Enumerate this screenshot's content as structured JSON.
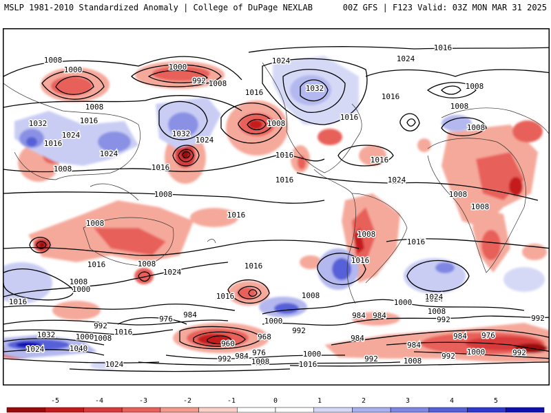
{
  "header": {
    "left": "MSLP 1981-2010 Standardized Anomaly | College of DuPage NEXLAB",
    "right": "00Z GFS | F123 Valid: 03Z MON MAR 31 2025"
  },
  "colorbar": {
    "ticks": [
      "-5",
      "-4",
      "-3",
      "-2",
      "-1",
      "0",
      "1",
      "2",
      "3",
      "4",
      "5"
    ],
    "colors": [
      "#9a0a0a",
      "#c41a1a",
      "#d73a3a",
      "#e8605a",
      "#f29b8c",
      "#fbd0c6",
      "#ffffff",
      "#ffffff",
      "#d4d8f6",
      "#a9b0ee",
      "#7f87e2",
      "#5660d8",
      "#2f38cc",
      "#1010b0"
    ]
  },
  "contour_labels": [
    {
      "text": "1008"
    },
    {
      "text": "1000"
    },
    {
      "text": "1000"
    },
    {
      "text": "992"
    },
    {
      "text": "1008"
    },
    {
      "text": "1024"
    },
    {
      "text": "1016"
    },
    {
      "text": "1024"
    },
    {
      "text": "1032"
    },
    {
      "text": "1016"
    },
    {
      "text": "1016"
    },
    {
      "text": "1008"
    },
    {
      "text": "1032"
    },
    {
      "text": "1016"
    },
    {
      "text": "1024"
    },
    {
      "text": "1016"
    },
    {
      "text": "1008"
    },
    {
      "text": "1024"
    },
    {
      "text": "1032"
    },
    {
      "text": "1024"
    },
    {
      "text": "1008"
    },
    {
      "text": "1016"
    },
    {
      "text": "1016"
    },
    {
      "text": "1016"
    },
    {
      "text": "1024"
    },
    {
      "text": "1016"
    },
    {
      "text": "1008"
    },
    {
      "text": "1016"
    },
    {
      "text": "1016"
    },
    {
      "text": "1008"
    },
    {
      "text": "1008"
    },
    {
      "text": "1008"
    },
    {
      "text": "1008"
    },
    {
      "text": "1008"
    },
    {
      "text": "1008"
    },
    {
      "text": "1016"
    },
    {
      "text": "1016"
    },
    {
      "text": "1016"
    },
    {
      "text": "1016"
    },
    {
      "text": "1008"
    },
    {
      "text": "1024"
    },
    {
      "text": "1008"
    },
    {
      "text": "1000"
    },
    {
      "text": "1016"
    },
    {
      "text": "1008"
    },
    {
      "text": "1016"
    },
    {
      "text": "1008"
    },
    {
      "text": "1000"
    },
    {
      "text": "1024"
    },
    {
      "text": "1008"
    },
    {
      "text": "1000"
    },
    {
      "text": "992"
    },
    {
      "text": "984"
    },
    {
      "text": "992"
    },
    {
      "text": "984"
    },
    {
      "text": "976"
    },
    {
      "text": "992"
    },
    {
      "text": "992"
    },
    {
      "text": "1032"
    },
    {
      "text": "1000"
    },
    {
      "text": "1008"
    },
    {
      "text": "1016"
    },
    {
      "text": "1040"
    },
    {
      "text": "1024"
    },
    {
      "text": "960"
    },
    {
      "text": "968"
    },
    {
      "text": "976"
    },
    {
      "text": "984"
    },
    {
      "text": "992"
    },
    {
      "text": "1000"
    },
    {
      "text": "1008"
    },
    {
      "text": "1016"
    },
    {
      "text": "1024"
    },
    {
      "text": "984"
    },
    {
      "text": "992"
    },
    {
      "text": "984"
    },
    {
      "text": "976"
    },
    {
      "text": "984"
    },
    {
      "text": "992"
    },
    {
      "text": "1000"
    },
    {
      "text": "1008"
    },
    {
      "text": "992"
    },
    {
      "text": "1024"
    },
    {
      "text": "1016"
    },
    {
      "text": "984"
    }
  ]
}
